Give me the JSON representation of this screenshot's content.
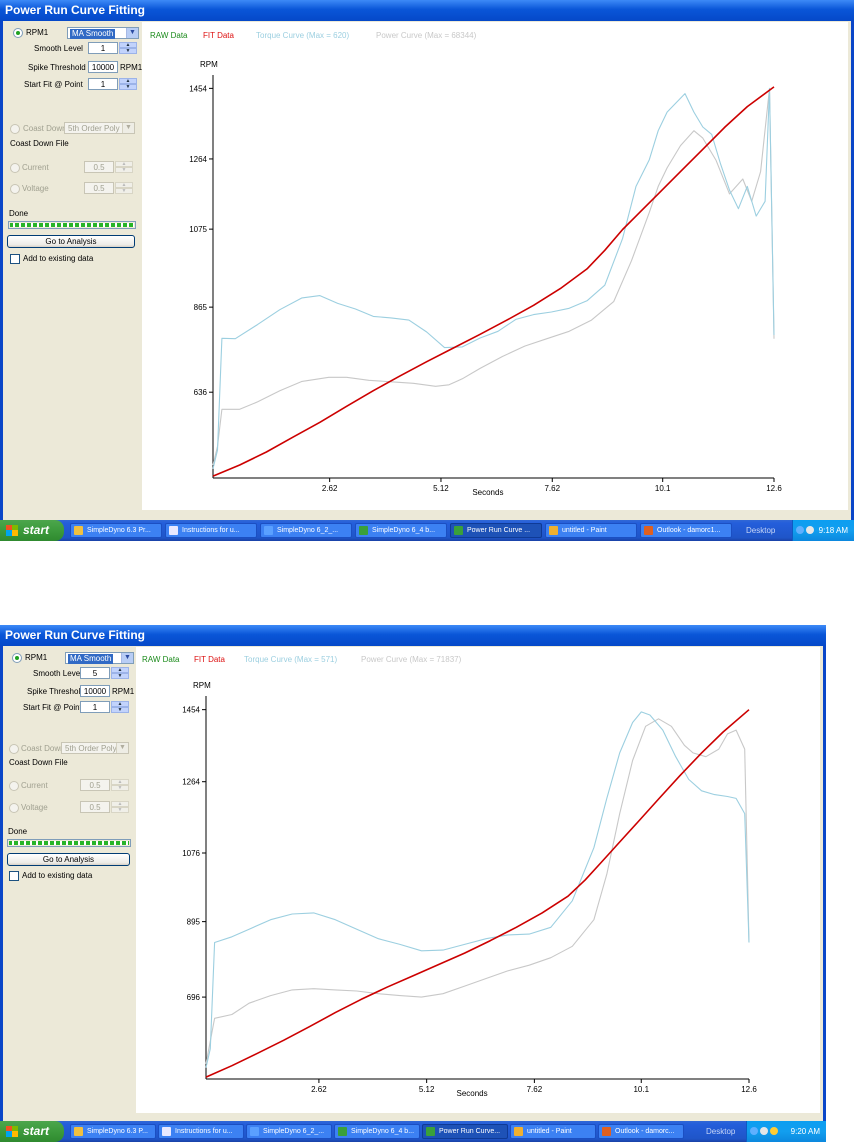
{
  "shots": [
    {
      "window_title": "Power Run Curve Fitting",
      "panel": {
        "rpm_radio": "RPM1",
        "smoothing_mode": "MA Smooth",
        "smooth_level_label": "Smooth Level",
        "smooth_level": "1",
        "spike_threshold_label": "Spike Threshold",
        "spike_threshold": "10000",
        "spike_unit": "RPM1",
        "start_fit_label": "Start Fit @ Point",
        "start_fit": "1",
        "coast_down_label": "Coast Down",
        "coast_down_mode": "5th Order Poly",
        "coast_down_file": "Coast Down File",
        "current_label": "Current",
        "current_value": "0.5",
        "voltage_label": "Voltage",
        "voltage_value": "0.5",
        "status": "Done",
        "progress": 1.0,
        "analysis_button": "Go to Analysis",
        "add_existing": "Add to existing data"
      },
      "legend": {
        "raw": "RAW Data",
        "fit": "FIT Data",
        "torque": "Torque Curve (Max = 620)",
        "power": "Power Curve (Max = 68344)"
      },
      "taskbar": {
        "start": "start",
        "items": [
          "SimpleDyno 6.3 Pr...",
          "Instructions for u...",
          "SimpleDyno 6_2_...",
          "SimpleDyno 6_4 b...",
          "Power Run Curve ...",
          "untitled - Paint",
          "Outlook - damorc1..."
        ],
        "active_index": 4,
        "desktop": "Desktop",
        "clock": "9:18 AM"
      }
    },
    {
      "window_title": "Power Run Curve Fitting",
      "panel": {
        "rpm_radio": "RPM1",
        "smoothing_mode": "MA Smooth",
        "smooth_level_label": "Smooth Level",
        "smooth_level": "5",
        "spike_threshold_label": "Spike Threshold",
        "spike_threshold": "10000",
        "spike_unit": "RPM1",
        "start_fit_label": "Start Fit @ Point",
        "start_fit": "1",
        "coast_down_label": "Coast Down",
        "coast_down_mode": "5th Order Poly",
        "coast_down_file": "Coast Down File",
        "current_label": "Current",
        "current_value": "0.5",
        "voltage_label": "Voltage",
        "voltage_value": "0.5",
        "status": "Done",
        "progress": 1.0,
        "analysis_button": "Go to Analysis",
        "add_existing": "Add to existing data"
      },
      "legend": {
        "raw": "RAW Data",
        "fit": "FIT Data",
        "torque": "Torque Curve (Max = 571)",
        "power": "Power Curve (Max = 71837)"
      },
      "taskbar": {
        "start": "start",
        "items": [
          "SimpleDyno 6.3 P...",
          "Instructions for u...",
          "SimpleDyno 6_2_...",
          "SimpleDyno 6_4 b...",
          "Power Run Curve...",
          "untitled - Paint",
          "Outlook - damorc..."
        ],
        "active_index": 4,
        "desktop": "Desktop",
        "clock": "9:20 AM"
      }
    }
  ],
  "colors": {
    "raw": "#1a8a1a",
    "fit": "#dd1111",
    "fit_line": "#cc0000",
    "torque": "#9ccfe0",
    "power": "#c8c8c8",
    "window_blue": "#0a46c8",
    "panel_bg": "#ece9d8"
  },
  "chart_data": [
    {
      "type": "line",
      "title": "",
      "ylabel": "RPM",
      "xlabel": "Seconds",
      "x_ticks": [
        "2.62",
        "5.12",
        "7.62",
        "10.1",
        "12.6"
      ],
      "y_ticks": [
        "1454",
        "1264",
        "1075",
        "865",
        "636"
      ],
      "xlim": [
        0,
        12.6
      ],
      "ylim": [
        405,
        1490
      ],
      "series": [
        {
          "name": "FIT Data",
          "color_key": "fit_line",
          "x": [
            0,
            0.6,
            1.2,
            1.8,
            2.4,
            3.0,
            3.6,
            4.2,
            4.8,
            5.4,
            6.0,
            6.6,
            7.2,
            7.8,
            8.4,
            8.8,
            9.2,
            9.6,
            10.0,
            10.5,
            11.0,
            11.5,
            12.0,
            12.6
          ],
          "y": [
            410,
            440,
            475,
            515,
            555,
            598,
            640,
            680,
            718,
            755,
            792,
            830,
            870,
            915,
            968,
            1018,
            1074,
            1122,
            1170,
            1230,
            1290,
            1350,
            1405,
            1458
          ]
        },
        {
          "name": "Torque Curve (Max = 620)",
          "color_key": "torque",
          "x": [
            0,
            0.1,
            0.2,
            0.5,
            1.0,
            1.5,
            2.0,
            2.4,
            2.8,
            3.2,
            3.6,
            4.0,
            4.4,
            4.8,
            5.2,
            5.6,
            6.0,
            6.4,
            6.8,
            7.2,
            7.6,
            8.0,
            8.4,
            8.8,
            9.2,
            9.5,
            9.8,
            10.0,
            10.2,
            10.4,
            10.6,
            10.8,
            11.0,
            11.2,
            11.4,
            11.6,
            11.8,
            12.0,
            12.2,
            12.4,
            12.5,
            12.6
          ],
          "y": [
            430,
            480,
            781,
            780,
            818,
            858,
            890,
            896,
            875,
            860,
            840,
            836,
            830,
            798,
            756,
            758,
            782,
            800,
            832,
            845,
            852,
            862,
            882,
            924,
            1050,
            1190,
            1262,
            1340,
            1390,
            1415,
            1440,
            1390,
            1350,
            1330,
            1250,
            1180,
            1130,
            1190,
            1110,
            1150,
            1454,
            790
          ]
        },
        {
          "name": "Power Curve (Max = 68344)",
          "color_key": "power",
          "x": [
            0,
            0.1,
            0.2,
            0.6,
            1.0,
            1.5,
            2.0,
            2.6,
            3.0,
            3.5,
            4.0,
            4.5,
            5.0,
            5.3,
            5.6,
            6.0,
            6.5,
            7.0,
            7.5,
            8.0,
            8.5,
            9.0,
            9.4,
            9.8,
            10.0,
            10.2,
            10.5,
            10.8,
            11.0,
            11.3,
            11.6,
            11.9,
            12.1,
            12.3,
            12.5,
            12.6
          ],
          "y": [
            440,
            490,
            590,
            590,
            610,
            640,
            665,
            676,
            676,
            668,
            664,
            660,
            652,
            656,
            672,
            700,
            732,
            760,
            780,
            800,
            830,
            880,
            990,
            1120,
            1190,
            1240,
            1300,
            1340,
            1320,
            1260,
            1170,
            1210,
            1150,
            1230,
            1454,
            780
          ]
        }
      ]
    },
    {
      "type": "line",
      "title": "",
      "ylabel": "RPM",
      "xlabel": "Seconds",
      "x_ticks": [
        "2.62",
        "5.12",
        "7.62",
        "10.1",
        "12.6"
      ],
      "y_ticks": [
        "1454",
        "1264",
        "1076",
        "895",
        "696"
      ],
      "xlim": [
        0,
        12.6
      ],
      "ylim": [
        480,
        1490
      ],
      "series": [
        {
          "name": "FIT Data",
          "color_key": "fit_line",
          "x": [
            0,
            0.6,
            1.2,
            1.8,
            2.4,
            3.0,
            3.6,
            4.2,
            4.8,
            5.4,
            6.0,
            6.6,
            7.2,
            7.8,
            8.4,
            8.8,
            9.2,
            9.6,
            10.0,
            10.5,
            11.0,
            11.5,
            12.0,
            12.6
          ],
          "y": [
            485,
            515,
            548,
            582,
            618,
            655,
            690,
            722,
            752,
            782,
            812,
            845,
            880,
            918,
            962,
            1005,
            1055,
            1105,
            1155,
            1218,
            1280,
            1340,
            1395,
            1454
          ]
        },
        {
          "name": "Torque Curve (Max = 571)",
          "color_key": "torque",
          "x": [
            0,
            0.1,
            0.2,
            0.6,
            1.0,
            1.5,
            2.0,
            2.5,
            3.0,
            3.5,
            4.0,
            4.5,
            5.0,
            5.5,
            6.0,
            6.5,
            7.0,
            7.5,
            8.0,
            8.5,
            9.0,
            9.3,
            9.6,
            9.9,
            10.1,
            10.3,
            10.6,
            10.9,
            11.2,
            11.5,
            11.8,
            12.1,
            12.3,
            12.5,
            12.6
          ],
          "y": [
            510,
            560,
            840,
            855,
            875,
            900,
            915,
            918,
            900,
            875,
            850,
            835,
            818,
            820,
            835,
            850,
            860,
            862,
            880,
            950,
            1090,
            1220,
            1340,
            1420,
            1448,
            1440,
            1400,
            1330,
            1270,
            1240,
            1230,
            1225,
            1220,
            1180,
            840
          ]
        },
        {
          "name": "Power Curve (Max = 71837)",
          "color_key": "power",
          "x": [
            0,
            0.1,
            0.2,
            0.6,
            1.0,
            1.5,
            2.0,
            2.5,
            3.0,
            3.5,
            4.0,
            4.5,
            5.0,
            5.5,
            6.0,
            6.5,
            7.0,
            7.5,
            8.0,
            8.5,
            9.0,
            9.3,
            9.6,
            9.9,
            10.2,
            10.5,
            10.8,
            11.1,
            11.3,
            11.6,
            11.9,
            12.1,
            12.3,
            12.5,
            12.6
          ],
          "y": [
            520,
            580,
            640,
            650,
            680,
            700,
            715,
            718,
            715,
            712,
            705,
            700,
            696,
            705,
            725,
            745,
            765,
            780,
            800,
            830,
            900,
            1020,
            1180,
            1320,
            1410,
            1430,
            1410,
            1360,
            1340,
            1330,
            1350,
            1390,
            1400,
            1350,
            840
          ]
        }
      ]
    }
  ]
}
